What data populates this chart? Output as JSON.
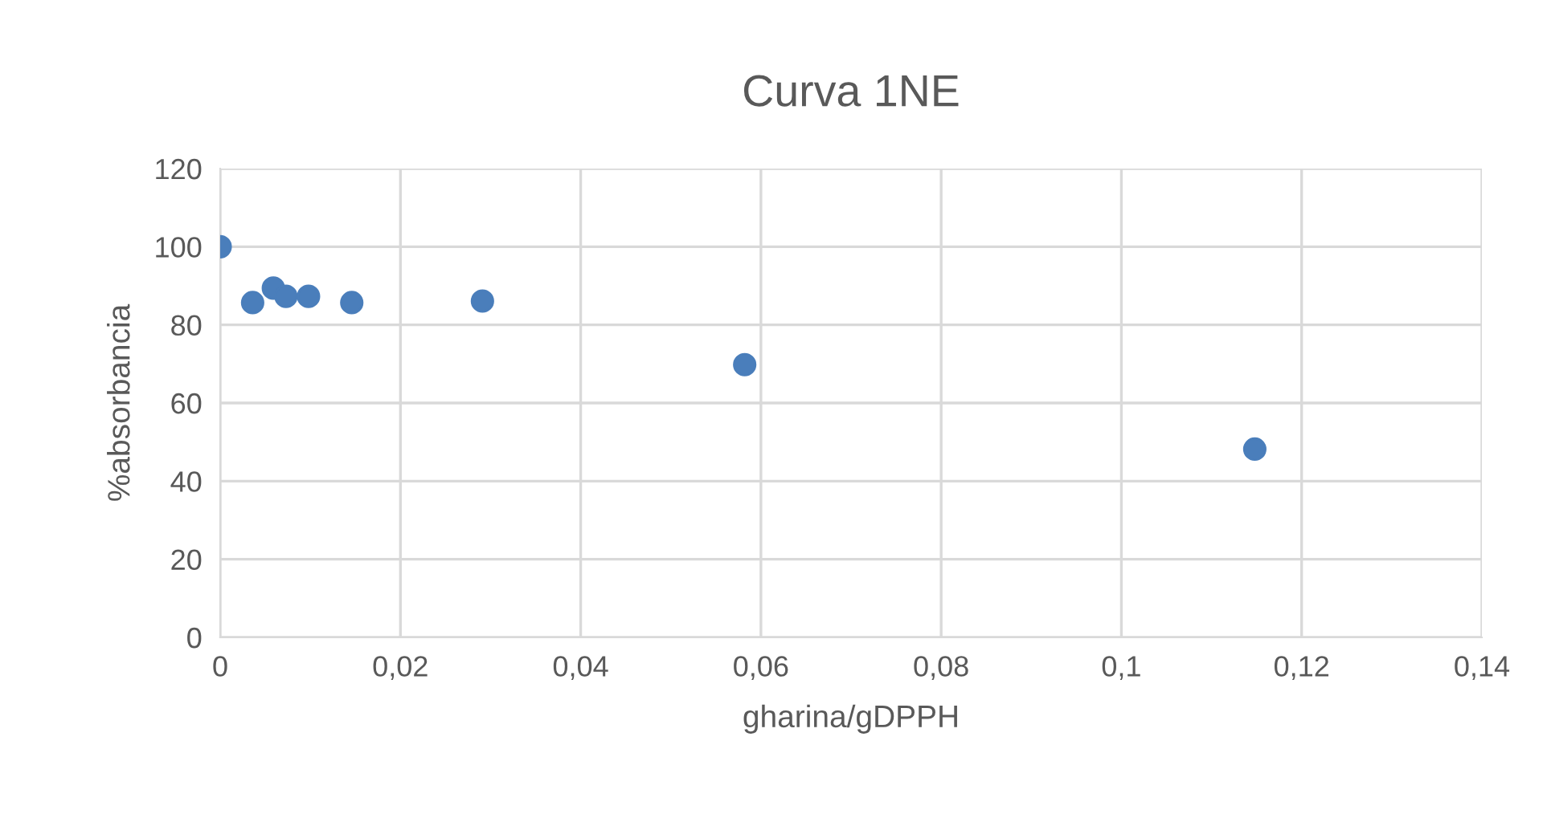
{
  "chart_data": {
    "type": "scatter",
    "title": "Curva 1NE",
    "xlabel": "gharina/gDPPH",
    "ylabel": "%absorbancia",
    "x": [
      0,
      0.0036,
      0.0059,
      0.0073,
      0.0098,
      0.0146,
      0.0291,
      0.0582,
      0.1148
    ],
    "values": [
      100,
      85.7,
      89.4,
      87.3,
      87.3,
      85.7,
      86.1,
      69.8,
      48.2
    ],
    "color": "#4a7ebb",
    "marker": "circle",
    "grid": true,
    "xlim": [
      0,
      0.14
    ],
    "xticks": [
      0,
      {
        "value": 0.02,
        "label": "0,02"
      },
      {
        "value": 0.04,
        "label": "0,04"
      },
      {
        "value": 0.06,
        "label": "0,06"
      },
      {
        "value": 0.08,
        "label": "0,08"
      },
      {
        "value": 0.1,
        "label": "0,1"
      },
      {
        "value": 0.12,
        "label": "0,12"
      },
      {
        "value": 0.14,
        "label": "0,14"
      }
    ],
    "ylim": [
      0,
      120
    ],
    "yticks": [
      0,
      20,
      40,
      60,
      80,
      100,
      120
    ]
  }
}
